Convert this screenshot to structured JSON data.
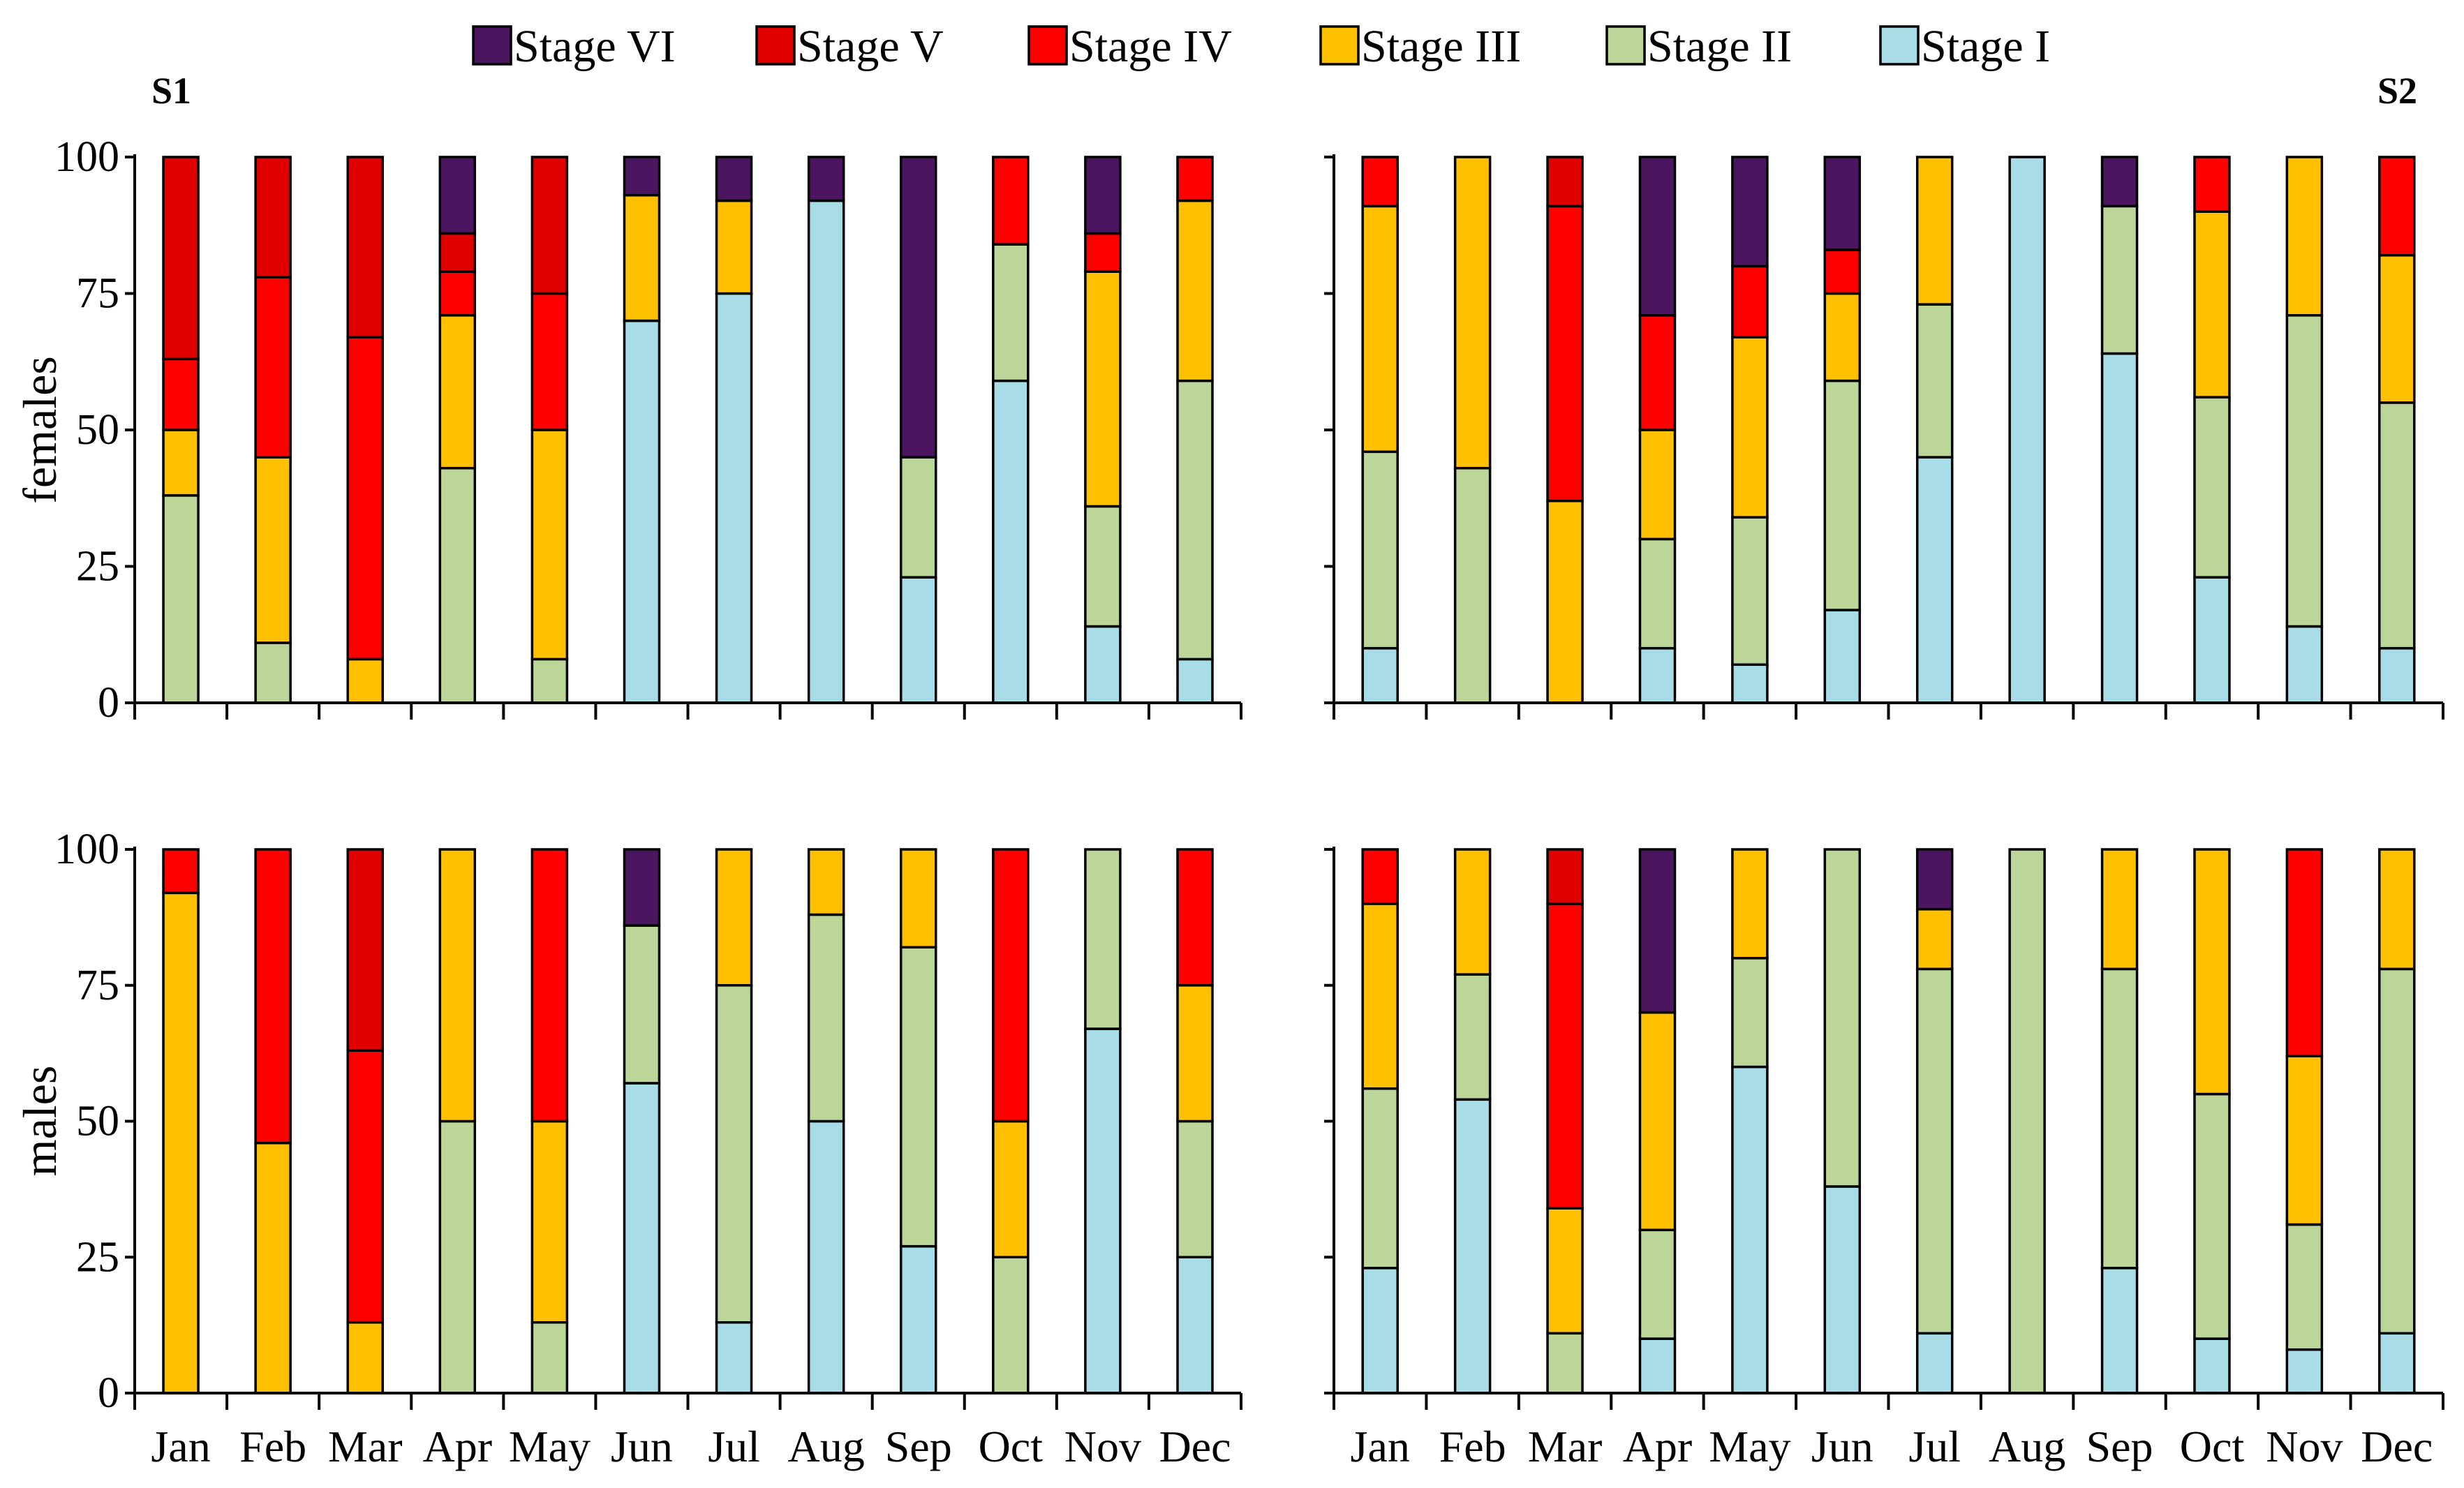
{
  "chart_data": {
    "type": "bar",
    "stacked": true,
    "categories": [
      "Jan",
      "Feb",
      "Mar",
      "Apr",
      "May",
      "Jun",
      "Jul",
      "Aug",
      "Sep",
      "Oct",
      "Nov",
      "Dec"
    ],
    "y_ticks": [
      "0",
      "25",
      "50",
      "75",
      "100"
    ],
    "ylim": [
      0,
      100
    ],
    "stages": [
      {
        "key": "I",
        "name": "Stage I",
        "color": "#a8dde8"
      },
      {
        "key": "II",
        "name": "Stage II",
        "color": "#bcd69a"
      },
      {
        "key": "III",
        "name": "Stage III",
        "color": "#ffc000"
      },
      {
        "key": "IV",
        "name": "Stage IV",
        "color": "#ff0000"
      },
      {
        "key": "V",
        "name": "Stage V",
        "color": "#e00000"
      },
      {
        "key": "VI",
        "name": "Stage VI",
        "color": "#4b1560"
      }
    ],
    "legend_order": [
      "VI",
      "V",
      "IV",
      "III",
      "II",
      "I"
    ],
    "panels": [
      {
        "id": "s1-females",
        "site": "S1",
        "sex_label": "females",
        "bars": [
          {
            "I": 0,
            "II": 38,
            "III": 12,
            "IV": 13,
            "V": 37,
            "VI": 0
          },
          {
            "I": 0,
            "II": 11,
            "III": 34,
            "IV": 33,
            "V": 22,
            "VI": 0
          },
          {
            "I": 0,
            "II": 0,
            "III": 8,
            "IV": 59,
            "V": 33,
            "VI": 0
          },
          {
            "I": 0,
            "II": 43,
            "III": 28,
            "IV": 8,
            "V": 7,
            "VI": 14
          },
          {
            "I": 0,
            "II": 8,
            "III": 42,
            "IV": 25,
            "V": 25,
            "VI": 0
          },
          {
            "I": 70,
            "II": 0,
            "III": 23,
            "IV": 0,
            "V": 0,
            "VI": 7
          },
          {
            "I": 75,
            "II": 0,
            "III": 17,
            "IV": 0,
            "V": 0,
            "VI": 8
          },
          {
            "I": 92,
            "II": 0,
            "III": 0,
            "IV": 0,
            "V": 0,
            "VI": 8
          },
          {
            "I": 23,
            "II": 22,
            "III": 0,
            "IV": 0,
            "V": 0,
            "VI": 55
          },
          {
            "I": 59,
            "II": 25,
            "III": 0,
            "IV": 16,
            "V": 0,
            "VI": 0
          },
          {
            "I": 14,
            "II": 22,
            "III": 43,
            "IV": 7,
            "V": 0,
            "VI": 14
          },
          {
            "I": 8,
            "II": 51,
            "III": 33,
            "IV": 8,
            "V": 0,
            "VI": 0
          }
        ]
      },
      {
        "id": "s2-females",
        "site": "S2",
        "sex_label": "",
        "bars": [
          {
            "I": 10,
            "II": 36,
            "III": 45,
            "IV": 9,
            "V": 0,
            "VI": 0
          },
          {
            "I": 0,
            "II": 43,
            "III": 57,
            "IV": 0,
            "V": 0,
            "VI": 0
          },
          {
            "I": 0,
            "II": 0,
            "III": 37,
            "IV": 54,
            "V": 9,
            "VI": 0
          },
          {
            "I": 10,
            "II": 20,
            "III": 20,
            "IV": 21,
            "V": 0,
            "VI": 29
          },
          {
            "I": 7,
            "II": 27,
            "III": 33,
            "IV": 13,
            "V": 0,
            "VI": 20
          },
          {
            "I": 17,
            "II": 42,
            "III": 16,
            "IV": 8,
            "V": 0,
            "VI": 17
          },
          {
            "I": 45,
            "II": 28,
            "III": 27,
            "IV": 0,
            "V": 0,
            "VI": 0
          },
          {
            "I": 100,
            "II": 0,
            "III": 0,
            "IV": 0,
            "V": 0,
            "VI": 0
          },
          {
            "I": 64,
            "II": 27,
            "III": 0,
            "IV": 0,
            "V": 0,
            "VI": 9
          },
          {
            "I": 23,
            "II": 33,
            "III": 34,
            "IV": 10,
            "V": 0,
            "VI": 0
          },
          {
            "I": 14,
            "II": 57,
            "III": 29,
            "IV": 0,
            "V": 0,
            "VI": 0
          },
          {
            "I": 10,
            "II": 45,
            "III": 27,
            "IV": 18,
            "V": 0,
            "VI": 0
          }
        ]
      },
      {
        "id": "s1-males",
        "site": "",
        "sex_label": "males",
        "bars": [
          {
            "I": 0,
            "II": 0,
            "III": 92,
            "IV": 8,
            "V": 0,
            "VI": 0
          },
          {
            "I": 0,
            "II": 0,
            "III": 46,
            "IV": 54,
            "V": 0,
            "VI": 0
          },
          {
            "I": 0,
            "II": 0,
            "III": 13,
            "IV": 50,
            "V": 37,
            "VI": 0
          },
          {
            "I": 0,
            "II": 50,
            "III": 50,
            "IV": 0,
            "V": 0,
            "VI": 0
          },
          {
            "I": 0,
            "II": 13,
            "III": 37,
            "IV": 50,
            "V": 0,
            "VI": 0
          },
          {
            "I": 57,
            "II": 29,
            "III": 0,
            "IV": 0,
            "V": 0,
            "VI": 14
          },
          {
            "I": 13,
            "II": 62,
            "III": 25,
            "IV": 0,
            "V": 0,
            "VI": 0
          },
          {
            "I": 50,
            "II": 38,
            "III": 12,
            "IV": 0,
            "V": 0,
            "VI": 0
          },
          {
            "I": 27,
            "II": 55,
            "III": 18,
            "IV": 0,
            "V": 0,
            "VI": 0
          },
          {
            "I": 0,
            "II": 25,
            "III": 25,
            "IV": 50,
            "V": 0,
            "VI": 0
          },
          {
            "I": 67,
            "II": 33,
            "III": 0,
            "IV": 0,
            "V": 0,
            "VI": 0
          },
          {
            "I": 25,
            "II": 25,
            "III": 25,
            "IV": 25,
            "V": 0,
            "VI": 0
          }
        ]
      },
      {
        "id": "s2-males",
        "site": "",
        "sex_label": "",
        "bars": [
          {
            "I": 23,
            "II": 33,
            "III": 34,
            "IV": 10,
            "V": 0,
            "VI": 0
          },
          {
            "I": 54,
            "II": 23,
            "III": 23,
            "IV": 0,
            "V": 0,
            "VI": 0
          },
          {
            "I": 0,
            "II": 11,
            "III": 23,
            "IV": 56,
            "V": 10,
            "VI": 0
          },
          {
            "I": 10,
            "II": 20,
            "III": 40,
            "IV": 0,
            "V": 0,
            "VI": 30
          },
          {
            "I": 60,
            "II": 20,
            "III": 20,
            "IV": 0,
            "V": 0,
            "VI": 0
          },
          {
            "I": 38,
            "II": 62,
            "III": 0,
            "IV": 0,
            "V": 0,
            "VI": 0
          },
          {
            "I": 11,
            "II": 67,
            "III": 11,
            "IV": 0,
            "V": 0,
            "VI": 11
          },
          {
            "I": 0,
            "II": 100,
            "III": 0,
            "IV": 0,
            "V": 0,
            "VI": 0
          },
          {
            "I": 23,
            "II": 55,
            "III": 22,
            "IV": 0,
            "V": 0,
            "VI": 0
          },
          {
            "I": 10,
            "II": 45,
            "III": 45,
            "IV": 0,
            "V": 0,
            "VI": 0
          },
          {
            "I": 8,
            "II": 23,
            "III": 31,
            "IV": 38,
            "V": 0,
            "VI": 0
          },
          {
            "I": 11,
            "II": 67,
            "III": 22,
            "IV": 0,
            "V": 0,
            "VI": 0
          }
        ]
      }
    ]
  }
}
